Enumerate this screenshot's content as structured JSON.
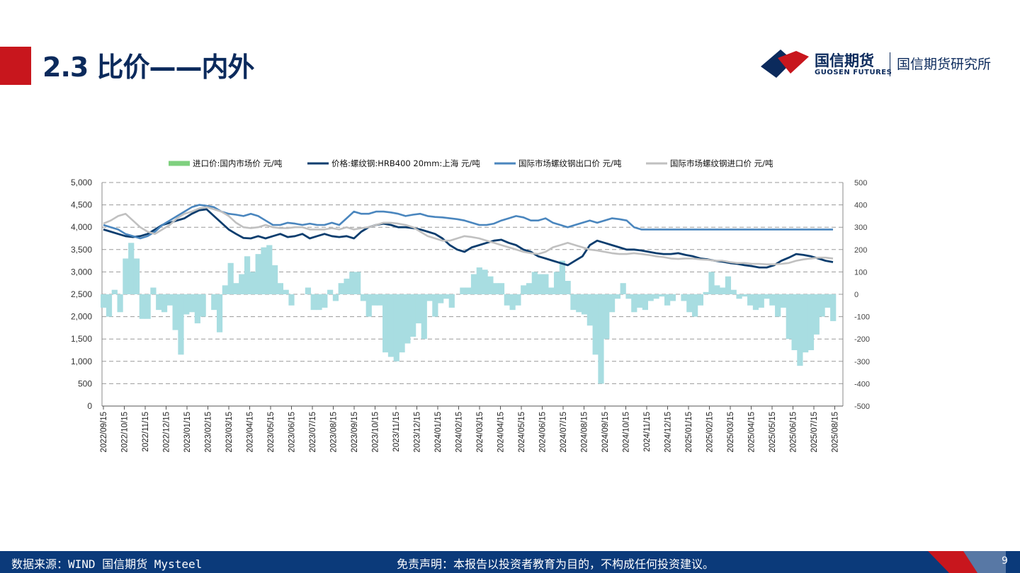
{
  "header": {
    "title": "2.3 比价——内外",
    "logo_cn": "国信期货",
    "logo_en": "GUOSEN FUTURES",
    "institute": "国信期货研究所",
    "accent_color": "#c8161d",
    "brand_color": "#0b2a5c"
  },
  "footer": {
    "source": "数据来源：WIND 国信期货 Mysteel",
    "disclaimer": "免责声明：本报告以投资者教育为目的，不构成任何投资建议。",
    "page_number": "9"
  },
  "chart_data": {
    "type": "line",
    "title": "",
    "xlabel": "",
    "ylabel": "",
    "legend_position": "top",
    "grid": "horizontal dashed",
    "x_labels": [
      "2022/09/15",
      "2022/10/15",
      "2022/11/15",
      "2022/12/15",
      "2023/01/15",
      "2023/02/15",
      "2023/03/15",
      "2023/04/15",
      "2023/05/15",
      "2023/06/15",
      "2023/07/15",
      "2023/08/15",
      "2023/09/15",
      "2023/10/15",
      "2023/11/15",
      "2023/12/15",
      "2024/01/15",
      "2024/02/15",
      "2024/03/15",
      "2024/04/15",
      "2024/05/15",
      "2024/06/15",
      "2024/07/15",
      "2024/08/15",
      "2024/09/15",
      "2024/10/15",
      "2024/11/15",
      "2024/12/15",
      "2025/01/15",
      "2025/02/15",
      "2025/03/15",
      "2025/04/15",
      "2025/05/15",
      "2025/06/15",
      "2025/07/15",
      "2025/08/15"
    ],
    "y_left": {
      "min": 0,
      "max": 5000,
      "ticks": [
        "0",
        "500",
        "1,000",
        "1,500",
        "2,000",
        "2,500",
        "3,000",
        "3,500",
        "4,000",
        "4,500",
        "5,000"
      ]
    },
    "y_right": {
      "min": -500,
      "max": 500,
      "ticks": [
        "-500",
        "-400",
        "-300",
        "-200",
        "-100",
        "0",
        "100",
        "200",
        "300",
        "400",
        "500"
      ]
    },
    "series": [
      {
        "name": "进口价:国内市场价 元/吨",
        "type": "area",
        "axis": "right",
        "color": "#a8dde1",
        "legend_color": "#7fd07f",
        "values": [
          -60,
          -100,
          20,
          -80,
          160,
          230,
          160,
          -110,
          -110,
          30,
          -70,
          -80,
          -50,
          -160,
          -270,
          -90,
          -80,
          -130,
          -100,
          0,
          -70,
          -170,
          40,
          140,
          50,
          90,
          170,
          100,
          180,
          210,
          220,
          130,
          50,
          20,
          -50,
          0,
          0,
          30,
          -70,
          -70,
          -60,
          20,
          -30,
          50,
          70,
          100,
          100,
          -30,
          -100,
          -50,
          -50,
          -260,
          -280,
          -300,
          -260,
          -220,
          -190,
          -130,
          -200,
          -30,
          -100,
          -40,
          -20,
          -60,
          0,
          30,
          30,
          90,
          120,
          110,
          80,
          50,
          50,
          -50,
          -70,
          -50,
          40,
          50,
          100,
          90,
          90,
          30,
          100,
          150,
          60,
          -70,
          -80,
          -90,
          -140,
          -270,
          -400,
          -200,
          -80,
          -20,
          50,
          -20,
          -80,
          -60,
          -70,
          -30,
          -20,
          -10,
          -50,
          -30,
          0,
          -30,
          -80,
          -100,
          -50,
          10,
          100,
          40,
          30,
          80,
          20,
          -20,
          -10,
          -50,
          -70,
          -60,
          -20,
          -50,
          -100,
          -60,
          -200,
          -250,
          -320,
          -260,
          -250,
          -180,
          -100,
          -60,
          -120
        ]
      },
      {
        "name": "价格:螺纹钢:HRB400 20mm:上海 元/吨",
        "axis": "left",
        "color": "#0b3d6e",
        "values": [
          3950,
          3900,
          3850,
          3800,
          3780,
          3800,
          3850,
          3950,
          4050,
          4100,
          4150,
          4200,
          4300,
          4380,
          4400,
          4250,
          4100,
          3950,
          3850,
          3760,
          3750,
          3800,
          3750,
          3800,
          3850,
          3780,
          3800,
          3850,
          3750,
          3800,
          3850,
          3800,
          3780,
          3800,
          3750,
          3900,
          4000,
          4050,
          4080,
          4050,
          4000,
          4000,
          3980,
          3950,
          3900,
          3850,
          3750,
          3600,
          3500,
          3450,
          3550,
          3600,
          3650,
          3700,
          3720,
          3650,
          3600,
          3500,
          3450,
          3350,
          3300,
          3250,
          3200,
          3150,
          3250,
          3350,
          3600,
          3700,
          3650,
          3600,
          3550,
          3500,
          3500,
          3480,
          3450,
          3420,
          3400,
          3400,
          3420,
          3380,
          3350,
          3300,
          3280,
          3250,
          3230,
          3200,
          3180,
          3150,
          3130,
          3100,
          3100,
          3150,
          3250,
          3320,
          3400,
          3380,
          3350,
          3300,
          3250,
          3220
        ]
      },
      {
        "name": "国际市场螺纹钢出口价 元/吨",
        "axis": "left",
        "color": "#4a86be",
        "values": [
          4050,
          4000,
          3950,
          3850,
          3800,
          3750,
          3800,
          3900,
          4050,
          4150,
          4250,
          4350,
          4450,
          4500,
          4480,
          4450,
          4350,
          4300,
          4280,
          4250,
          4300,
          4250,
          4150,
          4050,
          4050,
          4100,
          4080,
          4050,
          4080,
          4050,
          4050,
          4100,
          4050,
          4200,
          4350,
          4300,
          4300,
          4350,
          4350,
          4330,
          4300,
          4250,
          4280,
          4300,
          4250,
          4230,
          4220,
          4200,
          4180,
          4150,
          4100,
          4050,
          4050,
          4080,
          4150,
          4200,
          4250,
          4220,
          4150,
          4150,
          4200,
          4100,
          4050,
          4000,
          4050,
          4100,
          4150,
          4100,
          4150,
          4200,
          4180,
          4150,
          4000,
          3950,
          3950,
          3950,
          3950,
          3950,
          3950,
          3950,
          3950,
          3950,
          3950,
          3950,
          3950,
          3950,
          3950,
          3950,
          3950,
          3950,
          3950,
          3950,
          3950,
          3950,
          3950,
          3950,
          3950,
          3950,
          3950,
          3950
        ]
      },
      {
        "name": "国际市场螺纹钢进口价 元/吨",
        "axis": "left",
        "color": "#c0c0c0",
        "values": [
          4080,
          4150,
          4250,
          4300,
          4150,
          4000,
          3900,
          3850,
          3950,
          4050,
          4200,
          4300,
          4350,
          4420,
          4450,
          4400,
          4350,
          4250,
          4100,
          4000,
          3980,
          4000,
          4050,
          4000,
          3980,
          3980,
          4000,
          4000,
          3950,
          3950,
          3950,
          3980,
          3950,
          4000,
          3950,
          3980,
          4000,
          4050,
          4100,
          4100,
          4080,
          4050,
          4000,
          3900,
          3800,
          3750,
          3700,
          3700,
          3750,
          3800,
          3780,
          3750,
          3700,
          3650,
          3600,
          3550,
          3500,
          3450,
          3420,
          3400,
          3450,
          3550,
          3600,
          3650,
          3600,
          3550,
          3500,
          3480,
          3450,
          3420,
          3400,
          3400,
          3420,
          3400,
          3380,
          3350,
          3330,
          3300,
          3290,
          3300,
          3300,
          3280,
          3270,
          3250,
          3250,
          3220,
          3200,
          3200,
          3180,
          3180,
          3170,
          3170,
          3180,
          3200,
          3250,
          3280,
          3300,
          3320,
          3320,
          3300
        ]
      }
    ]
  }
}
